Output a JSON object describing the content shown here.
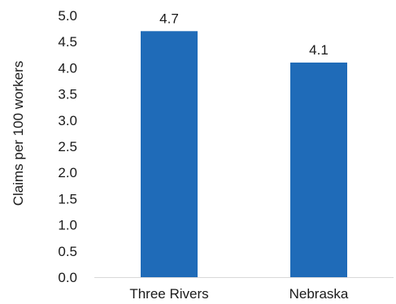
{
  "chart_data": {
    "type": "bar",
    "title": "",
    "xlabel": "",
    "ylabel": "Claims per 100 workers",
    "categories": [
      "Three Rivers",
      "Nebraska"
    ],
    "values": [
      4.7,
      4.1
    ],
    "data_labels": [
      "4.7",
      "4.1"
    ],
    "ylim": [
      0,
      5
    ],
    "yticks": [
      "0.0",
      "0.5",
      "1.0",
      "1.5",
      "2.0",
      "2.5",
      "3.0",
      "3.5",
      "4.0",
      "4.5",
      "5.0"
    ],
    "grid": false,
    "legend": "none",
    "bar_color": "#1F6BB8"
  }
}
